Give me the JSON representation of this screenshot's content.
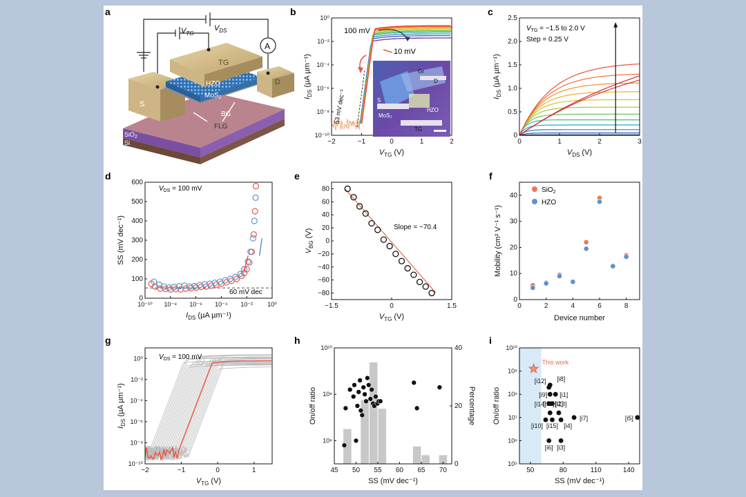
{
  "panels": {
    "a": {
      "letter": "a",
      "labels": {
        "vds": "V",
        "vds_sub": "DS",
        "vtg": "V",
        "vtg_sub": "TG",
        "ammeter": "A",
        "tg": "TG",
        "hzo": "HZO",
        "mos2": "MoS",
        "mos2_sub": "2",
        "s": "S",
        "d": "D",
        "bg": "BG",
        "sio2": "SiO",
        "sio2_sub": "2",
        "si": "Si",
        "flg": "FLG"
      },
      "colors": {
        "gold": "#c8b48a",
        "hzo": "#3d7cc0",
        "bg": "#b07f88",
        "sio2": "#7a4fa0",
        "si": "#6b4838"
      }
    },
    "b": {
      "letter": "b",
      "annotations": {
        "vds_high": "100 mV",
        "vds_low": "10 mV",
        "ss": "53 mV dec⁻¹",
        "inset": {
          "gr": "Gr",
          "d": "D",
          "s": "S",
          "mos2": "MoS₂",
          "hzo": "HZO",
          "tg": "TG"
        }
      }
    },
    "c": {
      "letter": "c",
      "annotations": {
        "vtg_range": "V",
        "vtg_sub": "TG",
        "range_text": " = −1.5 to 2.0 V",
        "step": "Step =  0.25 V"
      }
    },
    "d": {
      "letter": "d",
      "annotations": {
        "vds": "V",
        "vds_sub": "DS",
        "vds_val": " = 100 mV",
        "ref": "60 mV dec"
      }
    },
    "e": {
      "letter": "e",
      "annotations": {
        "slope": "Slope = −70.4"
      }
    },
    "f": {
      "letter": "f",
      "legend": {
        "sio2": "SiO",
        "sio2_sub": "2",
        "hzo": "HZO"
      }
    },
    "g": {
      "letter": "g",
      "annotations": {
        "vds": "V",
        "vds_sub": "DS",
        "vds_val": " = 100 mV"
      }
    },
    "h": {
      "letter": "h"
    },
    "i": {
      "letter": "i",
      "annotations": {
        "this_work": "This work"
      }
    }
  },
  "chart_data": [
    {
      "panel": "b",
      "type": "line",
      "xlabel": "V_TG (V)",
      "ylabel": "I_DS (µA µm⁻¹)",
      "xlim": [
        -2,
        2
      ],
      "ylim_log10": [
        -10,
        0
      ],
      "xticks": [
        "−2",
        "−1",
        "0",
        "1",
        "2"
      ],
      "yticks": [
        "10⁻¹⁰",
        "10⁻⁸",
        "10⁻⁶",
        "10⁻⁴",
        "10⁻²",
        "10⁰"
      ],
      "series_note": "Transfer curves for V_DS from 10 mV to 100 mV; turn-on near V_TG = −1 V, saturating near 10⁻¹ µA µm⁻¹",
      "series": [
        {
          "vds_mV": 10,
          "color": "#7b3294",
          "on_log10": -1.7
        },
        {
          "vds_mV": 20,
          "color": "#3b5fc0",
          "on_log10": -1.5
        },
        {
          "vds_mV": 30,
          "color": "#2c8fc4",
          "on_log10": -1.35
        },
        {
          "vds_mV": 40,
          "color": "#2bb0a0",
          "on_log10": -1.2
        },
        {
          "vds_mV": 50,
          "color": "#5cbd5c",
          "on_log10": -1.1
        },
        {
          "vds_mV": 60,
          "color": "#a6c53c",
          "on_log10": -1.0
        },
        {
          "vds_mV": 70,
          "color": "#e0c230",
          "on_log10": -0.9
        },
        {
          "vds_mV": 80,
          "color": "#f29a2e",
          "on_log10": -0.8
        },
        {
          "vds_mV": 90,
          "color": "#ef6b35",
          "on_log10": -0.72
        },
        {
          "vds_mV": 100,
          "color": "#e6413a",
          "on_log10": -0.65
        }
      ]
    },
    {
      "panel": "c",
      "type": "line",
      "xlabel": "V_DS (V)",
      "ylabel": "I_DS (µA µm⁻¹)",
      "xlim": [
        0,
        3
      ],
      "ylim": [
        0,
        2.5
      ],
      "xticks": [
        "0",
        "1",
        "2",
        "3"
      ],
      "yticks": [
        "0",
        "0.5",
        "1.0",
        "1.5",
        "2.0",
        "2.5"
      ],
      "series": [
        {
          "vtg": -1.5,
          "sat": 0.0
        },
        {
          "vtg": -1.25,
          "sat": 0.01
        },
        {
          "vtg": -1.0,
          "sat": 0.05
        },
        {
          "vtg": -0.75,
          "sat": 0.12
        },
        {
          "vtg": -0.5,
          "sat": 0.22
        },
        {
          "vtg": -0.25,
          "sat": 0.33
        },
        {
          "vtg": 0.0,
          "sat": 0.45
        },
        {
          "vtg": 0.25,
          "sat": 0.6
        },
        {
          "vtg": 0.5,
          "sat": 0.76
        },
        {
          "vtg": 0.75,
          "sat": 0.93
        },
        {
          "vtg": 1.0,
          "sat": 1.12
        },
        {
          "vtg": 1.25,
          "sat": 1.32
        },
        {
          "vtg": 1.5,
          "sat": 1.56
        },
        {
          "vtg": 1.75,
          "sat": 1.96
        },
        {
          "vtg": 2.0,
          "sat": 2.4
        }
      ]
    },
    {
      "panel": "d",
      "type": "scatter",
      "xlabel": "I_DS (µA µm⁻¹)",
      "ylabel": "SS (mV dec⁻¹)",
      "xlim_log10": [
        -10,
        0
      ],
      "ylim": [
        0,
        600
      ],
      "xticks": [
        "10⁻¹⁰",
        "10⁻⁸",
        "10⁻⁶",
        "10⁻⁴",
        "10⁻²",
        "10⁰"
      ],
      "yticks": [
        "0",
        "100",
        "200",
        "300",
        "400",
        "500",
        "600"
      ],
      "series": [
        {
          "name": "forward",
          "color": "#e8584a",
          "points": [
            [
              -9.5,
              75
            ],
            [
              -9.2,
              60
            ],
            [
              -8.8,
              50
            ],
            [
              -8.4,
              48
            ],
            [
              -8,
              45
            ],
            [
              -7.6,
              47
            ],
            [
              -7.2,
              45
            ],
            [
              -6.8,
              50
            ],
            [
              -6.4,
              52
            ],
            [
              -6,
              55
            ],
            [
              -5.6,
              58
            ],
            [
              -5.2,
              60
            ],
            [
              -4.8,
              65
            ],
            [
              -4.4,
              70
            ],
            [
              -4,
              75
            ],
            [
              -3.6,
              82
            ],
            [
              -3.2,
              90
            ],
            [
              -2.8,
              100
            ],
            [
              -2.4,
              115
            ],
            [
              -2.2,
              130
            ],
            [
              -2,
              150
            ],
            [
              -1.8,
              185
            ],
            [
              -1.6,
              240
            ],
            [
              -1.45,
              330
            ],
            [
              -1.35,
              450
            ],
            [
              -1.28,
              580
            ]
          ]
        },
        {
          "name": "reverse",
          "color": "#5f93c9",
          "points": [
            [
              -9.3,
              85
            ],
            [
              -8.9,
              70
            ],
            [
              -8.5,
              60
            ],
            [
              -8.1,
              55
            ],
            [
              -7.7,
              58
            ],
            [
              -7.3,
              62
            ],
            [
              -6.9,
              65
            ],
            [
              -6.5,
              60
            ],
            [
              -6.1,
              63
            ],
            [
              -5.7,
              68
            ],
            [
              -5.3,
              72
            ],
            [
              -4.9,
              75
            ],
            [
              -4.5,
              80
            ],
            [
              -4.1,
              85
            ],
            [
              -3.7,
              92
            ],
            [
              -3.3,
              100
            ],
            [
              -2.9,
              110
            ],
            [
              -2.5,
              125
            ],
            [
              -2.2,
              150
            ],
            [
              -1.9,
              190
            ],
            [
              -1.7,
              240
            ],
            [
              -1.5,
              310
            ],
            [
              -1.4,
              400
            ],
            [
              -1.3,
              520
            ]
          ]
        }
      ],
      "reference_line": 53
    },
    {
      "panel": "e",
      "type": "scatter",
      "xlabel": "V_TG (V)",
      "ylabel": "V_BG (V)",
      "xlim": [
        -1.5,
        1.5
      ],
      "ylim": [
        -90,
        90
      ],
      "xticks": [
        "−1.5",
        "0",
        "1.5"
      ],
      "yticks": [
        "−80",
        "−60",
        "−40",
        "−20",
        "0",
        "20",
        "40",
        "60",
        "80"
      ],
      "x": [
        -1.1,
        -0.95,
        -0.8,
        -0.65,
        -0.5,
        -0.35,
        -0.2,
        -0.05,
        0.1,
        0.25,
        0.4,
        0.55,
        0.7,
        0.85,
        1.0
      ],
      "y": [
        80,
        67,
        53,
        42,
        27,
        17,
        2,
        -8,
        -20,
        -31,
        -42,
        -52,
        -63,
        -70,
        -80
      ],
      "fit_slope": -70.4
    },
    {
      "panel": "f",
      "type": "scatter",
      "xlabel": "Device number",
      "ylabel": "Mobility (cm² V⁻¹ s⁻¹)",
      "xlim": [
        0,
        9
      ],
      "ylim": [
        0,
        45
      ],
      "xticks": [
        "0",
        "2",
        "4",
        "6",
        "8"
      ],
      "yticks": [
        "0",
        "10",
        "20",
        "30",
        "40"
      ],
      "series": [
        {
          "name": "SiO₂",
          "color": "#e87a5a",
          "x": [
            1,
            2,
            3,
            4,
            5,
            6,
            7,
            8
          ],
          "values": [
            5.5,
            6.5,
            9.5,
            7.0,
            22.0,
            39.0,
            13.0,
            17.0
          ]
        },
        {
          "name": "HZO",
          "color": "#5f8fd0",
          "x": [
            1,
            2,
            3,
            4,
            5,
            6,
            7,
            8
          ],
          "values": [
            4.5,
            6.2,
            9.0,
            6.8,
            19.5,
            37.5,
            12.8,
            16.4
          ]
        }
      ]
    },
    {
      "panel": "g",
      "type": "line",
      "xlabel": "V_TG (V)",
      "ylabel": "I_DS (µA µm⁻¹)",
      "xlim": [
        -2,
        1.5
      ],
      "ylim_log10": [
        -10,
        1
      ],
      "xticks": [
        "−2",
        "−1",
        "0",
        "1"
      ],
      "yticks": [
        "10⁻¹⁰",
        "10⁻⁸",
        "10⁻⁶",
        "10⁻⁴",
        "10⁻²",
        "10⁰"
      ],
      "series_note": "Transfer curves of many devices (grey) with a representative device highlighted (red)"
    },
    {
      "panel": "h",
      "type": "scatter",
      "xlabel": "SS (mV dec⁻¹)",
      "ylabel": "On/off ratio",
      "y2label": "Percentage",
      "xlim": [
        45,
        72
      ],
      "ylim_log10": [
        5,
        10
      ],
      "y2lim": [
        0,
        40
      ],
      "xticks": [
        "45",
        "50",
        "55",
        "60",
        "65",
        "70"
      ],
      "yticks": [
        "10⁶",
        "10⁸",
        "10¹⁰"
      ],
      "y2ticks": [
        "0",
        "20",
        "40"
      ],
      "histogram": {
        "bins": [
          47,
          49,
          51,
          53,
          55,
          57,
          59,
          61,
          63,
          65,
          67,
          69
        ],
        "percent": [
          12,
          0,
          22,
          35,
          19,
          0,
          0,
          0,
          6,
          3,
          0,
          3
        ]
      },
      "points": [
        [
          47.3,
          5.8
        ],
        [
          47.6,
          7.4
        ],
        [
          48.6,
          8.2
        ],
        [
          49.4,
          7.9
        ],
        [
          49.6,
          8.4
        ],
        [
          50.0,
          6.0
        ],
        [
          50.3,
          7.5
        ],
        [
          50.6,
          8.1
        ],
        [
          50.9,
          8.6
        ],
        [
          51.1,
          7.3
        ],
        [
          51.4,
          7.1
        ],
        [
          51.7,
          8.3
        ],
        [
          52.0,
          8.0
        ],
        [
          52.3,
          7.7
        ],
        [
          52.6,
          8.7
        ],
        [
          52.9,
          8.4
        ],
        [
          53.3,
          7.8
        ],
        [
          53.6,
          8.2
        ],
        [
          53.9,
          7.6
        ],
        [
          54.2,
          7.5
        ],
        [
          54.5,
          7.9
        ],
        [
          54.9,
          7.6
        ],
        [
          55.2,
          7.7
        ],
        [
          55.6,
          7.7
        ],
        [
          63.3,
          8.5
        ],
        [
          64.0,
          7.4
        ],
        [
          69.2,
          8.3
        ]
      ]
    },
    {
      "panel": "i",
      "type": "scatter",
      "xlabel": "SS (mV dec⁻¹)",
      "ylabel": "On/off ratio",
      "xlim": [
        40,
        150
      ],
      "ylim_log10": [
        5,
        10
      ],
      "xticks": [
        "50",
        "80",
        "110",
        "140"
      ],
      "yticks": [
        "10⁵",
        "10⁶",
        "10⁷",
        "10⁸",
        "10⁹",
        "10¹⁰"
      ],
      "highlight_range": [
        40,
        60
      ],
      "this_work": {
        "ss": 53,
        "log_on_off": 9.1
      },
      "points": [
        {
          "label": "[i8]",
          "ss": 68,
          "log": 8.4
        },
        {
          "label": "[i12]",
          "ss": 67,
          "log": 8.3
        },
        {
          "label": "[i9]",
          "ss": 68,
          "log": 8.0
        },
        {
          "label": "[i1]",
          "ss": 73,
          "log": 8.0
        },
        {
          "label": "[i14]",
          "ss": 67,
          "log": 7.6
        },
        {
          "label": "[i13]",
          "ss": 70,
          "log": 7.6
        },
        {
          "label": "[i11]",
          "ss": 68,
          "log": 7.2
        },
        {
          "label": "[i2]",
          "ss": 76,
          "log": 7.2
        },
        {
          "label": "[i7]",
          "ss": 90,
          "log": 7.0
        },
        {
          "label": "[i5]",
          "ss": 148,
          "log": 7.0
        },
        {
          "label": "[i10]",
          "ss": 64,
          "log": 6.9
        },
        {
          "label": "[i15]",
          "ss": 70,
          "log": 6.9
        },
        {
          "label": "[i4]",
          "ss": 78,
          "log": 6.9
        },
        {
          "label": "[i6]",
          "ss": 67,
          "log": 6.0
        },
        {
          "label": "[i3]",
          "ss": 78,
          "log": 6.0
        }
      ]
    }
  ]
}
